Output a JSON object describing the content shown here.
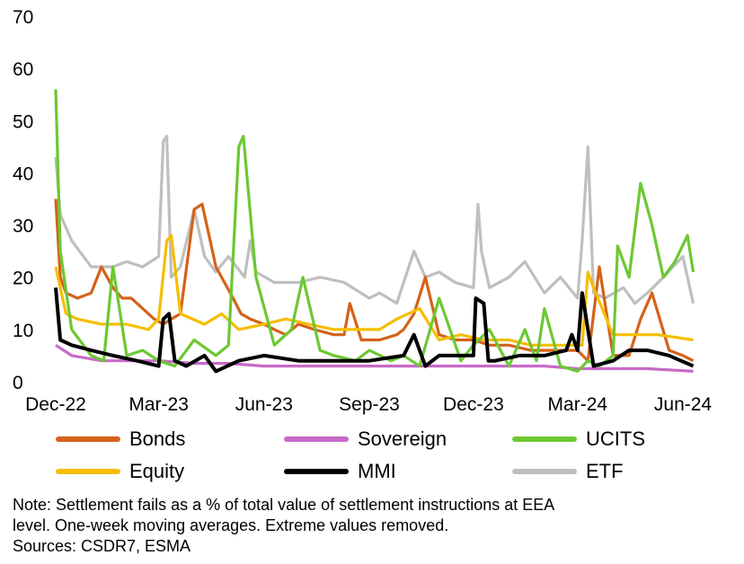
{
  "chart_data": {
    "type": "line",
    "ylim": [
      0,
      70
    ],
    "yticks": [
      "0",
      "10",
      "20",
      "30",
      "40",
      "50",
      "60",
      "70"
    ],
    "xlim": [
      "2022-12",
      "2024-06"
    ],
    "xticks": [
      "Dec-22",
      "Mar-23",
      "Jun-23",
      "Sep-23",
      "Dec-23",
      "Mar-24",
      "Jun-24"
    ],
    "grid": false,
    "legend_position": "bottom",
    "series": [
      {
        "name": "Bonds",
        "color": "#D4621A",
        "x": [
          "2022-12-01",
          "2022-12-05",
          "2022-12-10",
          "2022-12-20",
          "2023-01-01",
          "2023-01-10",
          "2023-01-20",
          "2023-01-28",
          "2023-02-05",
          "2023-02-15",
          "2023-02-25",
          "2023-03-05",
          "2023-03-12",
          "2023-03-20",
          "2023-04-01",
          "2023-04-08",
          "2023-04-12",
          "2023-04-20",
          "2023-05-05",
          "2023-05-12",
          "2023-05-20",
          "2023-06-01",
          "2023-06-10",
          "2023-06-20",
          "2023-07-01",
          "2023-07-15",
          "2023-08-01",
          "2023-08-10",
          "2023-08-15",
          "2023-08-25",
          "2023-09-10",
          "2023-09-25",
          "2023-10-01",
          "2023-10-10",
          "2023-10-20",
          "2023-11-01",
          "2023-11-15",
          "2023-12-01",
          "2023-12-15",
          "2024-01-01",
          "2024-01-20",
          "2024-02-10",
          "2024-03-01",
          "2024-03-10",
          "2024-03-20",
          "2024-04-01",
          "2024-04-15",
          "2024-04-25",
          "2024-05-05",
          "2024-05-20",
          "2024-06-01",
          "2024-06-10"
        ],
        "y": [
          35,
          20,
          17,
          16,
          17,
          22,
          18,
          16,
          16,
          14,
          12,
          11,
          12,
          13,
          33,
          34,
          30,
          22,
          16,
          13,
          12,
          11,
          10,
          9,
          11,
          10,
          9,
          9,
          15,
          8,
          8,
          9,
          10,
          13,
          20,
          9,
          8,
          8,
          7,
          7,
          6,
          6,
          6,
          4,
          22,
          5,
          5,
          12,
          17,
          6,
          5,
          4
        ]
      },
      {
        "name": "Sovereign",
        "color": "#C869C8",
        "x": [
          "2022-12-01",
          "2022-12-15",
          "2023-01-10",
          "2023-02-01",
          "2023-03-01",
          "2023-04-01",
          "2023-05-01",
          "2023-06-01",
          "2023-07-01",
          "2023-08-01",
          "2023-09-01",
          "2023-10-01",
          "2023-11-01",
          "2023-12-01",
          "2024-01-01",
          "2024-02-01",
          "2024-03-01",
          "2024-04-01",
          "2024-05-01",
          "2024-06-10"
        ],
        "y": [
          7,
          5,
          4,
          4,
          4,
          3.5,
          3.5,
          3,
          3,
          3,
          3,
          3,
          3,
          3,
          3,
          3,
          2.5,
          2.5,
          2.5,
          2
        ]
      },
      {
        "name": "UCITS",
        "color": "#6CC832",
        "x": [
          "2022-12-01",
          "2022-12-05",
          "2022-12-15",
          "2023-01-01",
          "2023-01-12",
          "2023-01-20",
          "2023-02-01",
          "2023-02-15",
          "2023-03-01",
          "2023-03-15",
          "2023-04-01",
          "2023-04-20",
          "2023-05-01",
          "2023-05-10",
          "2023-05-14",
          "2023-05-25",
          "2023-06-10",
          "2023-06-25",
          "2023-07-05",
          "2023-07-20",
          "2023-08-01",
          "2023-08-20",
          "2023-09-01",
          "2023-09-20",
          "2023-10-01",
          "2023-10-15",
          "2023-11-01",
          "2023-11-20",
          "2023-12-01",
          "2023-12-15",
          "2024-01-01",
          "2024-01-15",
          "2024-01-25",
          "2024-02-01",
          "2024-02-15",
          "2024-03-01",
          "2024-03-10",
          "2024-03-20",
          "2024-04-01",
          "2024-04-05",
          "2024-04-15",
          "2024-04-25",
          "2024-05-05",
          "2024-05-15",
          "2024-05-25",
          "2024-06-05",
          "2024-06-10"
        ],
        "y": [
          56,
          25,
          10,
          5,
          4,
          22,
          5,
          6,
          4,
          3,
          8,
          5,
          7,
          45,
          47,
          20,
          7,
          10,
          20,
          6,
          5,
          4,
          6,
          4,
          5,
          3,
          16,
          4,
          7,
          10,
          3,
          10,
          4,
          14,
          3,
          2,
          4,
          3,
          5,
          26,
          20,
          38,
          30,
          20,
          23,
          28,
          21
        ]
      },
      {
        "name": "Equity",
        "color": "#F5BE00",
        "x": [
          "2022-12-01",
          "2022-12-10",
          "2022-12-20",
          "2023-01-10",
          "2023-02-01",
          "2023-02-20",
          "2023-03-01",
          "2023-03-08",
          "2023-03-12",
          "2023-03-20",
          "2023-04-10",
          "2023-04-25",
          "2023-05-10",
          "2023-06-01",
          "2023-06-20",
          "2023-07-10",
          "2023-08-01",
          "2023-08-20",
          "2023-09-10",
          "2023-09-25",
          "2023-10-15",
          "2023-11-01",
          "2023-11-20",
          "2023-12-10",
          "2024-01-01",
          "2024-01-20",
          "2024-02-10",
          "2024-02-20",
          "2024-03-01",
          "2024-03-05",
          "2024-03-10",
          "2024-03-15",
          "2024-04-01",
          "2024-04-20",
          "2024-05-10",
          "2024-06-10"
        ],
        "y": [
          22,
          13,
          12,
          11,
          11,
          10,
          12,
          27,
          28,
          13,
          11,
          13,
          10,
          11,
          12,
          11,
          10,
          10,
          10,
          12,
          14,
          8,
          9,
          8,
          8,
          7,
          7,
          7,
          7,
          7,
          21,
          18,
          9,
          9,
          9,
          8
        ]
      },
      {
        "name": "MMI",
        "color": "#000000",
        "x": [
          "2022-12-01",
          "2022-12-05",
          "2022-12-15",
          "2023-01-01",
          "2023-01-20",
          "2023-02-10",
          "2023-03-01",
          "2023-03-05",
          "2023-03-10",
          "2023-03-15",
          "2023-03-25",
          "2023-04-10",
          "2023-04-20",
          "2023-05-10",
          "2023-06-01",
          "2023-07-01",
          "2023-08-01",
          "2023-09-01",
          "2023-10-01",
          "2023-10-10",
          "2023-10-20",
          "2023-11-01",
          "2023-11-20",
          "2023-12-01",
          "2023-12-03",
          "2023-12-10",
          "2023-12-14",
          "2023-12-20",
          "2024-01-10",
          "2024-02-01",
          "2024-02-20",
          "2024-02-25",
          "2024-03-01",
          "2024-03-05",
          "2024-03-10",
          "2024-03-15",
          "2024-04-01",
          "2024-04-15",
          "2024-05-01",
          "2024-05-20",
          "2024-06-10"
        ],
        "y": [
          18,
          8,
          7,
          6,
          5,
          4,
          3,
          12,
          13,
          4,
          3,
          5,
          2,
          4,
          5,
          4,
          4,
          4,
          5,
          9,
          3,
          5,
          5,
          5,
          16,
          15,
          4,
          4,
          5,
          5,
          6,
          9,
          6,
          17,
          10,
          3,
          4,
          6,
          6,
          5,
          3
        ]
      },
      {
        "name": "ETF",
        "color": "#BFBFBF",
        "x": [
          "2022-12-01",
          "2022-12-05",
          "2022-12-15",
          "2023-01-01",
          "2023-01-20",
          "2023-02-01",
          "2023-02-15",
          "2023-03-01",
          "2023-03-05",
          "2023-03-08",
          "2023-03-12",
          "2023-03-20",
          "2023-04-01",
          "2023-04-10",
          "2023-04-20",
          "2023-05-01",
          "2023-05-15",
          "2023-05-20",
          "2023-05-25",
          "2023-06-10",
          "2023-07-01",
          "2023-07-20",
          "2023-08-10",
          "2023-09-01",
          "2023-09-10",
          "2023-09-25",
          "2023-10-10",
          "2023-10-20",
          "2023-11-01",
          "2023-11-15",
          "2023-12-01",
          "2023-12-05",
          "2023-12-08",
          "2023-12-15",
          "2024-01-01",
          "2024-01-15",
          "2024-02-01",
          "2024-02-15",
          "2024-03-01",
          "2024-03-05",
          "2024-03-10",
          "2024-03-15",
          "2024-03-25",
          "2024-04-10",
          "2024-04-20",
          "2024-05-01",
          "2024-05-15",
          "2024-06-01",
          "2024-06-10"
        ],
        "y": [
          43,
          32,
          27,
          22,
          22,
          23,
          22,
          24,
          46,
          47,
          20,
          22,
          33,
          24,
          21,
          24,
          20,
          27,
          21,
          19,
          19,
          20,
          19,
          16,
          17,
          15,
          25,
          20,
          21,
          19,
          18,
          34,
          25,
          18,
          20,
          23,
          17,
          20,
          16,
          27,
          45,
          17,
          16,
          18,
          15,
          17,
          20,
          24,
          15
        ]
      }
    ]
  },
  "note": {
    "line1": "Note: Settlement fails as a % of total value of settlement instructions at EEA",
    "line2": "level. One-week moving averages. Extreme values removed.",
    "line3": "Sources: CSDR7, ESMA"
  }
}
